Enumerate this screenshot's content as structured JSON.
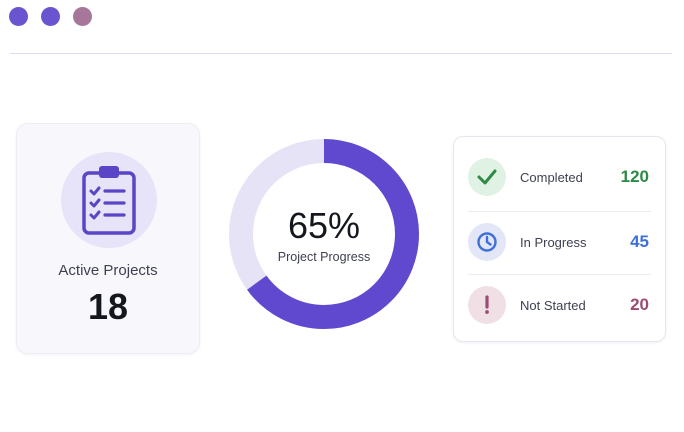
{
  "window": {
    "dots": [
      "#6b54cf",
      "#6b54cf",
      "#a7769b"
    ]
  },
  "active_projects": {
    "label": "Active Projects",
    "count": "18",
    "icon": "clipboard-checklist-icon"
  },
  "progress": {
    "value_text": "65%",
    "value": 0.65,
    "label": "Project Progress",
    "fill_color": "#6149cf",
    "track_color": "#e6e3f7"
  },
  "status": {
    "items": [
      {
        "label": "Completed",
        "count": "120",
        "icon": "check-icon",
        "color": "#2e8a45"
      },
      {
        "label": "In Progress",
        "count": "45",
        "icon": "clock-icon",
        "color": "#3d71d9"
      },
      {
        "label": "Not Started",
        "count": "20",
        "icon": "exclamation-icon",
        "color": "#9c4b73"
      }
    ]
  }
}
